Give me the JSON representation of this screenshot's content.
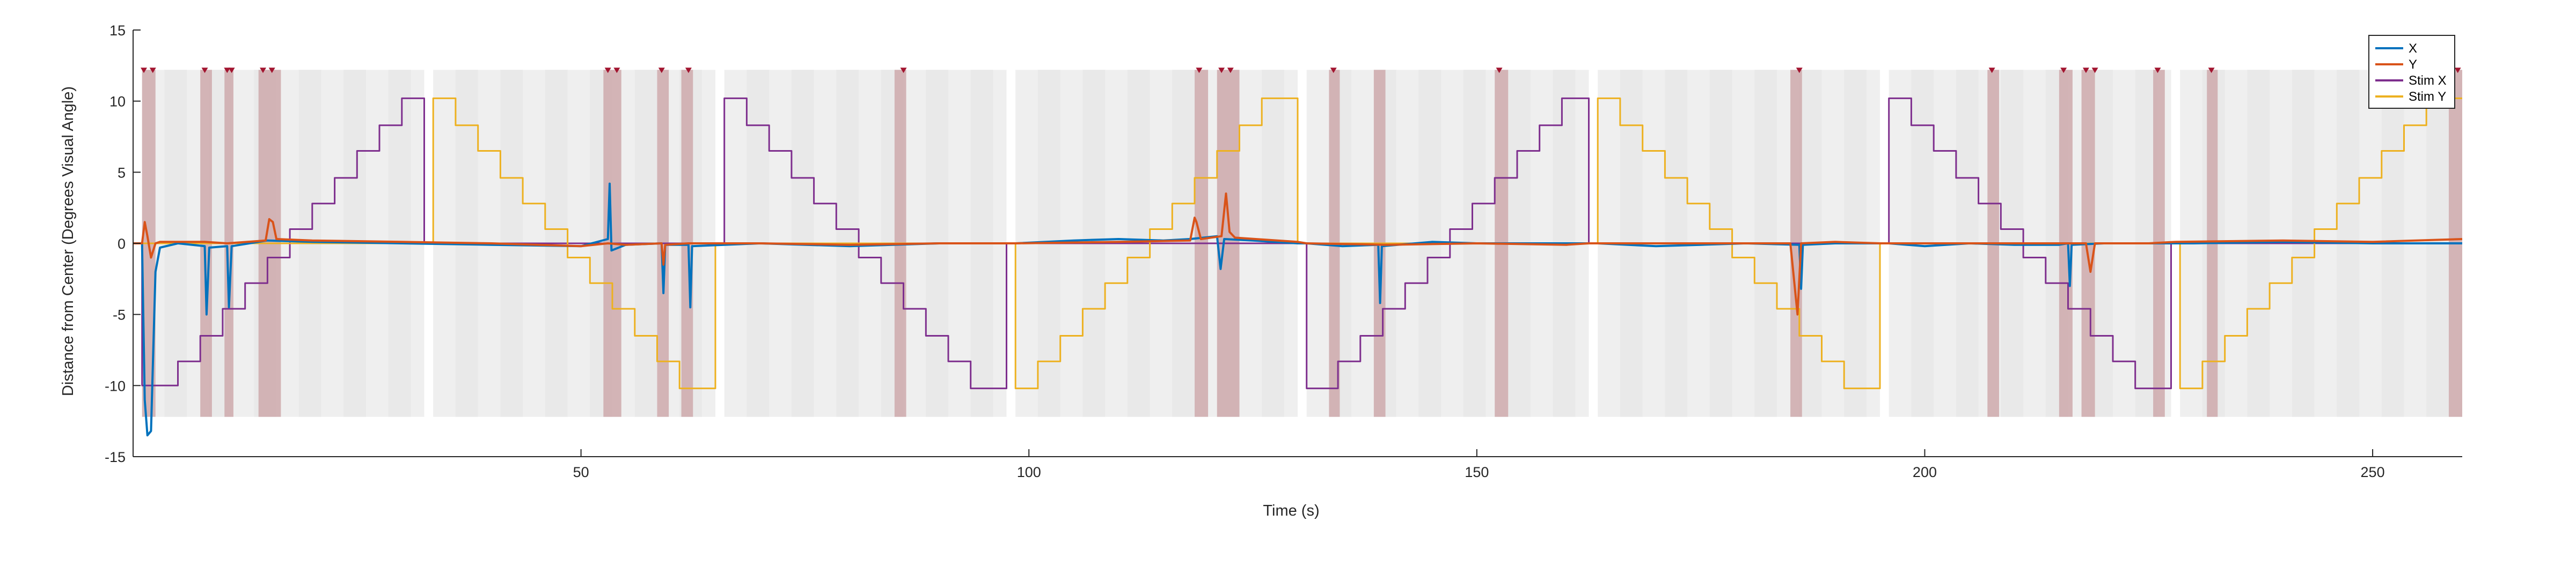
{
  "chart_data": {
    "type": "line",
    "xlabel": "Time (s)",
    "ylabel": "Distance from Center (Degrees Visual Angle)",
    "xlim": [
      0,
      260
    ],
    "ylim": [
      -15,
      15
    ],
    "x_ticks": [
      50,
      100,
      150,
      200,
      250
    ],
    "y_ticks": [
      15,
      10,
      5,
      0,
      -5,
      -10,
      -15
    ],
    "legend": {
      "placement": "top-right",
      "entries": [
        "X",
        "Y",
        "Stim X",
        "Stim Y"
      ]
    },
    "grid": false,
    "colors": {
      "X": "#0072BD",
      "Y": "#D95319",
      "Stim X": "#7E2F8E",
      "Stim Y": "#EDB120",
      "trial_band": "#efefef",
      "event_band": "#c9a0a3",
      "event_marker": "#a2142f"
    },
    "trial_blocks": [
      [
        1,
        32.5
      ],
      [
        33.5,
        65
      ],
      [
        66,
        97.5
      ],
      [
        98.5,
        130
      ],
      [
        131,
        162.5
      ],
      [
        163.5,
        195
      ],
      [
        196,
        227.5
      ],
      [
        228.5,
        260
      ]
    ],
    "event_intervals": [
      [
        1,
        2.5
      ],
      [
        7.5,
        8.8
      ],
      [
        10.2,
        11.2
      ],
      [
        14,
        16.5
      ],
      [
        52.5,
        54.5
      ],
      [
        58.5,
        59.8
      ],
      [
        61.2,
        62.5
      ],
      [
        85,
        86.3
      ],
      [
        118.5,
        120
      ],
      [
        121,
        123.5
      ],
      [
        133.5,
        134.7
      ],
      [
        138.5,
        139.8
      ],
      [
        152,
        153.5
      ],
      [
        185,
        186.3
      ],
      [
        207,
        208.3
      ],
      [
        215,
        216.5
      ],
      [
        217.5,
        219
      ],
      [
        225.5,
        226.8
      ],
      [
        231.5,
        232.7
      ],
      [
        258.5,
        260
      ]
    ],
    "event_markers": [
      1.2,
      2.2,
      8,
      10.5,
      11,
      14.5,
      15.5,
      53,
      54,
      59,
      62,
      86,
      119,
      121.5,
      122.5,
      134,
      152.5,
      186,
      207.5,
      215.5,
      218,
      219,
      226,
      232,
      259.5
    ],
    "series": [
      {
        "name": "Stim X",
        "x": [
          0,
          1,
          1,
          5,
          5,
          7.5,
          7.5,
          10,
          10,
          12.5,
          12.5,
          15,
          15,
          17.5,
          17.5,
          20,
          20,
          22.5,
          22.5,
          25,
          25,
          27.5,
          27.5,
          30,
          30,
          32.5,
          32.5,
          66,
          66,
          68.5,
          68.5,
          71,
          71,
          73.5,
          73.5,
          76,
          76,
          78.5,
          78.5,
          81,
          81,
          83.5,
          83.5,
          86,
          86,
          88.5,
          88.5,
          91,
          91,
          93.5,
          93.5,
          97.5,
          97.5,
          131,
          131,
          134.5,
          134.5,
          137,
          137,
          139.5,
          139.5,
          142,
          142,
          144.5,
          144.5,
          147,
          147,
          149.5,
          149.5,
          152,
          152,
          154.5,
          154.5,
          157,
          157,
          159.5,
          159.5,
          162.5,
          162.5,
          196,
          196,
          198.5,
          198.5,
          201,
          201,
          203.5,
          203.5,
          206,
          206,
          208.5,
          208.5,
          211,
          211,
          213.5,
          213.5,
          216,
          216,
          218.5,
          218.5,
          221,
          221,
          223.5,
          223.5,
          227.5,
          227.5,
          260
        ],
        "y": [
          0,
          0,
          -10,
          -10,
          -8.3,
          -8.3,
          -6.5,
          -6.5,
          -4.6,
          -4.6,
          -2.8,
          -2.8,
          -1,
          -1,
          1,
          1,
          2.8,
          2.8,
          4.6,
          4.6,
          6.5,
          6.5,
          8.3,
          8.3,
          10.2,
          10.2,
          0,
          0,
          10.2,
          10.2,
          8.3,
          8.3,
          6.5,
          6.5,
          4.6,
          4.6,
          2.8,
          2.8,
          1,
          1,
          -1,
          -1,
          -2.8,
          -2.8,
          -4.6,
          -4.6,
          -6.5,
          -6.5,
          -8.3,
          -8.3,
          -10.2,
          -10.2,
          0,
          0,
          -10.2,
          -10.2,
          -8.3,
          -8.3,
          -6.5,
          -6.5,
          -4.6,
          -4.6,
          -2.8,
          -2.8,
          -1,
          -1,
          1,
          1,
          2.8,
          2.8,
          4.6,
          4.6,
          6.5,
          6.5,
          8.3,
          8.3,
          10.2,
          10.2,
          0,
          0,
          10.2,
          10.2,
          8.3,
          8.3,
          6.5,
          6.5,
          4.6,
          4.6,
          2.8,
          2.8,
          1,
          1,
          -1,
          -1,
          -2.8,
          -2.8,
          -4.6,
          -4.6,
          -6.5,
          -6.5,
          -8.3,
          -8.3,
          -10.2,
          -10.2,
          0,
          0
        ]
      },
      {
        "name": "Stim Y",
        "x": [
          0,
          33.5,
          33.5,
          36,
          36,
          38.5,
          38.5,
          41,
          41,
          43.5,
          43.5,
          46,
          46,
          48.5,
          48.5,
          51,
          51,
          53.5,
          53.5,
          56,
          56,
          58.5,
          58.5,
          61,
          61,
          65,
          65,
          98.5,
          98.5,
          101,
          101,
          103.5,
          103.5,
          106,
          106,
          108.5,
          108.5,
          111,
          111,
          113.5,
          113.5,
          116,
          116,
          118.5,
          118.5,
          121,
          121,
          123.5,
          123.5,
          126,
          126,
          130,
          130,
          163.5,
          163.5,
          166,
          166,
          168.5,
          168.5,
          171,
          171,
          173.5,
          173.5,
          176,
          176,
          178.5,
          178.5,
          181,
          181,
          183.5,
          183.5,
          186,
          186,
          188.5,
          188.5,
          191,
          191,
          195,
          195,
          228.5,
          228.5,
          231,
          231,
          233.5,
          233.5,
          236,
          236,
          238.5,
          238.5,
          241,
          241,
          243.5,
          243.5,
          246,
          246,
          248.5,
          248.5,
          251,
          251,
          253.5,
          253.5,
          256,
          256,
          260
        ],
        "y": [
          0,
          0,
          10.2,
          10.2,
          8.3,
          8.3,
          6.5,
          6.5,
          4.6,
          4.6,
          2.8,
          2.8,
          1,
          1,
          -1,
          -1,
          -2.8,
          -2.8,
          -4.6,
          -4.6,
          -6.5,
          -6.5,
          -8.3,
          -8.3,
          -10.2,
          -10.2,
          0,
          0,
          -10.2,
          -10.2,
          -8.3,
          -8.3,
          -6.5,
          -6.5,
          -4.6,
          -4.6,
          -2.8,
          -2.8,
          -1,
          -1,
          1,
          1,
          2.8,
          2.8,
          4.6,
          4.6,
          6.5,
          6.5,
          8.3,
          8.3,
          10.2,
          10.2,
          0,
          0,
          10.2,
          10.2,
          8.3,
          8.3,
          6.5,
          6.5,
          4.6,
          4.6,
          2.8,
          2.8,
          1,
          1,
          -1,
          -1,
          -2.8,
          -2.8,
          -4.6,
          -4.6,
          -6.5,
          -6.5,
          -8.3,
          -8.3,
          -10.2,
          -10.2,
          0,
          0,
          -10.2,
          -10.2,
          -8.3,
          -8.3,
          -6.5,
          -6.5,
          -4.6,
          -4.6,
          -2.8,
          -2.8,
          -1,
          -1,
          1,
          1,
          2.8,
          2.8,
          4.6,
          4.6,
          6.5,
          6.5,
          8.3,
          8.3,
          10.2,
          10.2
        ]
      },
      {
        "name": "X",
        "x": [
          0,
          1,
          1.3,
          1.6,
          2,
          2.5,
          3,
          5,
          8,
          8.2,
          8.5,
          10.5,
          10.7,
          11,
          15,
          20,
          30,
          40,
          50,
          53,
          53.2,
          53.4,
          55,
          59,
          59.2,
          59.4,
          62,
          62.2,
          62.4,
          70,
          80,
          90,
          97.5,
          98.5,
          105,
          110,
          115,
          118,
          121,
          121.4,
          121.8,
          125,
          130,
          131,
          135,
          139,
          139.2,
          139.4,
          145,
          150,
          160,
          162.5,
          163.5,
          170,
          175,
          180,
          186,
          186.2,
          186.4,
          190,
          195,
          196,
          200,
          205,
          210,
          215,
          216,
          216.2,
          216.4,
          220,
          225,
          228,
          230,
          240,
          250,
          260
        ],
        "y": [
          0,
          0,
          -11,
          -13.5,
          -13.2,
          -2,
          -0.3,
          0,
          -0.2,
          -5,
          -0.3,
          -0.2,
          -4.5,
          -0.2,
          0.2,
          0.1,
          0,
          -0.1,
          -0.2,
          0.3,
          4.2,
          -0.5,
          -0.1,
          0,
          -3.5,
          -0.1,
          -0.1,
          -4.5,
          -0.2,
          0,
          -0.2,
          0,
          0,
          0,
          0.2,
          0.3,
          0.2,
          0.3,
          0.5,
          -1.8,
          0.3,
          0.2,
          0,
          0,
          -0.2,
          -0.1,
          -4.2,
          -0.2,
          0.1,
          0,
          0,
          0,
          0,
          -0.2,
          -0.1,
          0,
          -0.1,
          -3.2,
          -0.1,
          0,
          0,
          0,
          -0.2,
          0,
          -0.1,
          -0.1,
          0,
          -3,
          -0.1,
          0,
          0,
          0,
          0,
          0.1,
          0,
          0
        ]
      },
      {
        "name": "Y",
        "x": [
          0,
          1,
          1.3,
          1.6,
          2,
          2.5,
          3,
          8,
          10.5,
          14.8,
          15.2,
          15.6,
          16,
          20,
          30,
          40,
          50,
          53,
          55,
          59,
          59.2,
          59.4,
          62,
          70,
          80,
          90,
          97.5,
          98.5,
          110,
          118,
          118.5,
          118.7,
          119.2,
          121.5,
          122,
          122.4,
          123,
          130,
          131,
          140,
          150,
          160,
          162.5,
          163.5,
          170,
          180,
          185,
          185.8,
          186.2,
          190,
          195,
          196,
          205,
          215,
          218,
          218.5,
          219,
          225,
          228,
          240,
          250,
          260
        ],
        "y": [
          0,
          0,
          1.5,
          0.5,
          -1,
          0,
          0.1,
          0.1,
          0,
          0.2,
          1.7,
          1.5,
          0.3,
          0.2,
          0.1,
          0,
          -0.2,
          0,
          -0.1,
          0,
          -1.5,
          -0.1,
          0,
          0,
          -0.1,
          0,
          0,
          0,
          0.1,
          0.2,
          1.8,
          1.5,
          0.3,
          0.5,
          3.5,
          0.8,
          0.4,
          0.1,
          0,
          -0.1,
          0,
          -0.1,
          0,
          0,
          0,
          0,
          0,
          -5,
          0,
          0.1,
          0,
          0,
          0,
          0,
          0,
          -2,
          0,
          0,
          0.1,
          0.2,
          0.1,
          0.3
        ]
      }
    ]
  }
}
